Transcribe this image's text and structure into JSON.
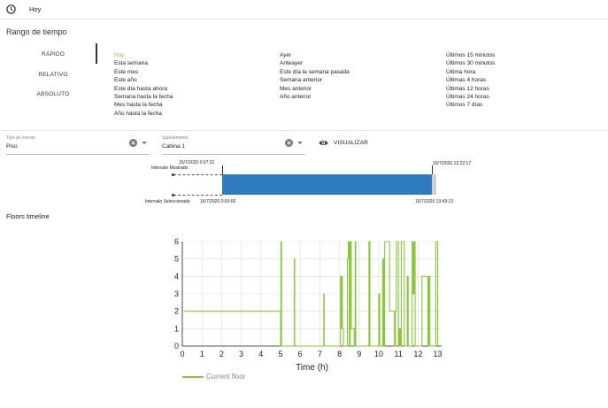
{
  "topbar": {
    "label": "Hoy"
  },
  "range_title": "Rango de tiempo",
  "tabs": [
    "RÁPIDO",
    "RELATIVO",
    "ABSOLUTO"
  ],
  "quick": {
    "col1": [
      "Hoy",
      "Esta semana",
      "Este mes",
      "Este año",
      "Este día hasta ahora",
      "Semana hasta la fecha",
      "Mes hasta la fecha",
      "Año hasta la fecha"
    ],
    "col2": [
      "Ayer",
      "Anteayer",
      "Este día la semana pasada",
      "Semana anterior",
      "Mes anterior",
      "Año anterior"
    ],
    "col3": [
      "Últimos 15 minutos",
      "Últimos 30 minutos",
      "Última hora",
      "Últimas 4 horas",
      "Últimas 12 horas",
      "Últimas 24 horas",
      "Últimos 7 días"
    ],
    "active_item": "Hoy"
  },
  "fields": {
    "event_type": {
      "label": "Tipo de evento",
      "value": "Piso"
    },
    "sub_element": {
      "label": "Subelemento",
      "value": "Cabina 1"
    }
  },
  "visualize_label": "VISUALIZAR",
  "timeline": {
    "shown_start": "15/7/2020 0:07:22",
    "shown_label": "Intervalo Mostrado",
    "shown_end": "15/7/2020 13:22:17",
    "selected_label": "Intervalo Seleccionado",
    "selected_start": "15/7/2020 0:00:00",
    "selected_end": "15/7/2020 13:43:13"
  },
  "chart_title": "Floors timeline",
  "colors": {
    "accent": "#8cc63f",
    "range_bar": "#2f7bbf"
  },
  "icons": {
    "clock": "clock-icon",
    "eye": "eye-icon",
    "clear": "clear-icon",
    "caret": "chevron-down-icon"
  },
  "chart_data": {
    "type": "line",
    "title": "",
    "xlabel": "Time (h)",
    "ylabel": "",
    "xlim": [
      0,
      13.2
    ],
    "ylim": [
      0,
      6
    ],
    "xticks": [
      0,
      1,
      2,
      3,
      4,
      5,
      6,
      7,
      8,
      9,
      10,
      11,
      12,
      13
    ],
    "yticks": [
      0,
      1,
      2,
      3,
      4,
      5,
      6
    ],
    "grid": true,
    "series": [
      {
        "name": "Current floor",
        "step": true,
        "x": [
          0.12,
          5.0,
          5.02,
          5.05,
          5.7,
          5.72,
          5.74,
          7.2,
          7.22,
          7.24,
          8.05,
          8.07,
          8.12,
          8.15,
          8.2,
          8.4,
          8.45,
          8.5,
          8.55,
          8.6,
          8.75,
          8.8,
          8.83,
          9.5,
          9.55,
          9.58,
          10.0,
          10.05,
          10.2,
          10.25,
          10.3,
          10.5,
          10.55,
          10.8,
          10.85,
          10.9,
          11.0,
          11.05,
          11.1,
          11.15,
          11.3,
          11.35,
          11.45,
          11.5,
          11.7,
          11.75,
          11.8,
          11.85,
          12.2,
          12.25,
          12.5,
          12.55,
          12.6,
          12.62,
          12.9,
          13.0
        ],
        "values": [
          2,
          0,
          6,
          0,
          5,
          0,
          0,
          3,
          0,
          0,
          4,
          1,
          4,
          1,
          0,
          5,
          6,
          0,
          6,
          1,
          0,
          6,
          0,
          6,
          0,
          0,
          3,
          0,
          5,
          0,
          6,
          6,
          2,
          0,
          2,
          6,
          0,
          1,
          0,
          6,
          0,
          0,
          4,
          0,
          6,
          3,
          6,
          0,
          4,
          4,
          0,
          4,
          0,
          0,
          6,
          0
        ]
      }
    ]
  }
}
